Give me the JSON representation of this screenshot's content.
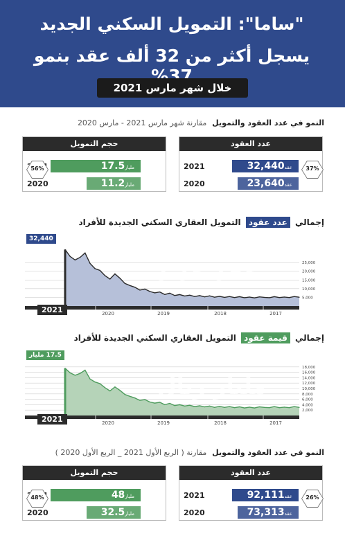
{
  "header": {
    "line1": "\"ساما\": التمويل السكني الجديد",
    "line2": "يسجل أكثر من 32 ألف عقد بنمو 37%",
    "subtitle": "خلال شهر مارس 2021"
  },
  "section1": {
    "title": "النمو في عدد العقود والتمويل",
    "note": "مقارنة شهر مارس 2021 - مارس 2020",
    "contracts": {
      "label": "عدد العقود",
      "growth": "37%",
      "unit": "عقد",
      "rows": [
        {
          "year": "2021",
          "value": "32,440"
        },
        {
          "year": "2020",
          "value": "23,640"
        }
      ]
    },
    "financing": {
      "label": "حجم التمويل",
      "growth": "56%",
      "unit": "مليار",
      "rows": [
        {
          "year": "2021",
          "value": "17.5"
        },
        {
          "year": "2020",
          "value": "11.2"
        }
      ]
    }
  },
  "section2": {
    "title": "النمو في عدد العقود والتمويل",
    "note": "مقارنة ( الربع الأول 2021 _ الربع الأول 2020 )",
    "contracts": {
      "label": "عدد العقود",
      "growth": "26%",
      "unit": "عقد",
      "rows": [
        {
          "year": "2021",
          "value": "92,111"
        },
        {
          "year": "2020",
          "value": "73,313"
        }
      ]
    },
    "financing": {
      "label": "حجم التمويل",
      "growth": "48%",
      "unit": "مليار",
      "rows": [
        {
          "year": "2021",
          "value": "48"
        },
        {
          "year": "2020",
          "value": "32.5"
        }
      ]
    }
  },
  "colors": {
    "navy": "#2f4a8c",
    "green": "#4f9c5e",
    "dark": "#2b2b2b",
    "chart1_fill": "#b6c0d9",
    "chart2_fill": "#b5d3b8"
  },
  "chart_data": [
    {
      "type": "area",
      "title_pre": "إجمالي",
      "title_hl": "عدد عقود",
      "title_post": "التمويل العقاري السكني الجديدة للأفراد",
      "watermark": "عقد جديد",
      "latest_label": "32,440",
      "latest_year": "2021",
      "x_ticks": [
        "2021",
        "2020",
        "2019",
        "2018",
        "2017"
      ],
      "y_ticks": [
        25000,
        20000,
        15000,
        10000,
        5000
      ],
      "y_tick_labels": [
        "25,000",
        "20,000",
        "15,000",
        "10,000",
        "5,000"
      ],
      "ylim": [
        0,
        35000
      ],
      "values": [
        32440,
        28500,
        26500,
        28000,
        30500,
        24500,
        21500,
        20500,
        17500,
        15500,
        18500,
        16000,
        13000,
        11800,
        10800,
        9200,
        9800,
        8400,
        7600,
        8100,
        6700,
        7400,
        6100,
        6600,
        5800,
        6300,
        5500,
        6000,
        5300,
        5900,
        5100,
        5600,
        5000,
        5500,
        4900,
        5400,
        4800,
        5200,
        4700,
        5300,
        5000,
        4800,
        5400,
        4900,
        5200,
        4900,
        5500,
        5100
      ]
    },
    {
      "type": "area",
      "title_pre": "إجمالي",
      "title_hl": "قيمة عقود",
      "title_post": "التمويل العقاري السكني الجديدة للأفراد",
      "watermark": "مليار ريال",
      "latest_label": "17.5",
      "latest_unit": "مليار",
      "latest_year": "2021",
      "x_ticks": [
        "2021",
        "2020",
        "2019",
        "2018",
        "2017"
      ],
      "y_ticks": [
        18000,
        16000,
        14000,
        12000,
        10000,
        8000,
        6000,
        4000,
        2000
      ],
      "y_tick_labels": [
        "18,000",
        "16,000",
        "14,000",
        "12,000",
        "10,000",
        "8,000",
        "6,000",
        "4,000",
        "2,000"
      ],
      "ylim": [
        0,
        20000
      ],
      "values": [
        17500,
        15800,
        14900,
        15600,
        16800,
        13500,
        12400,
        11800,
        10300,
        9100,
        10600,
        9300,
        7800,
        7100,
        6500,
        5600,
        5900,
        5000,
        4600,
        4900,
        4000,
        4500,
        3700,
        4000,
        3500,
        3800,
        3300,
        3600,
        3200,
        3500,
        3000,
        3400,
        3000,
        3300,
        2900,
        3200,
        2800,
        3100,
        2800,
        3200,
        3000,
        2900,
        3300,
        2900,
        3100,
        2900,
        3300,
        3000
      ]
    }
  ]
}
